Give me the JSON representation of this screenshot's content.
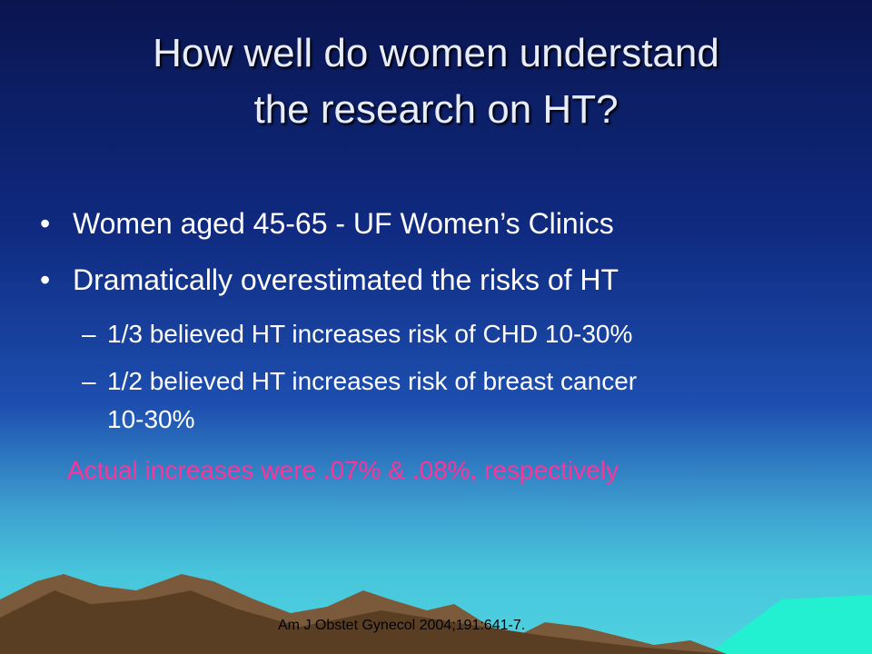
{
  "slide": {
    "title_lines": [
      "How well do women understand",
      "the research on HT?"
    ],
    "bullets": [
      {
        "text": "Women aged 45-65 - UF Women’s Clinics"
      },
      {
        "text": "Dramatically overestimated the risks of HT"
      }
    ],
    "sub_bullets": [
      {
        "dash": "–",
        "lines": [
          "1/3 believed HT increases risk of CHD 10-30%"
        ]
      },
      {
        "dash": "–",
        "lines": [
          "1/2 believed HT increases risk of breast cancer",
          "10-30%"
        ]
      }
    ],
    "bullet_marker": "•",
    "highlight": "Actual increases were .07% & .08%, respectively",
    "citation": "Am J Obstet Gynecol 2004;191:641-7."
  }
}
